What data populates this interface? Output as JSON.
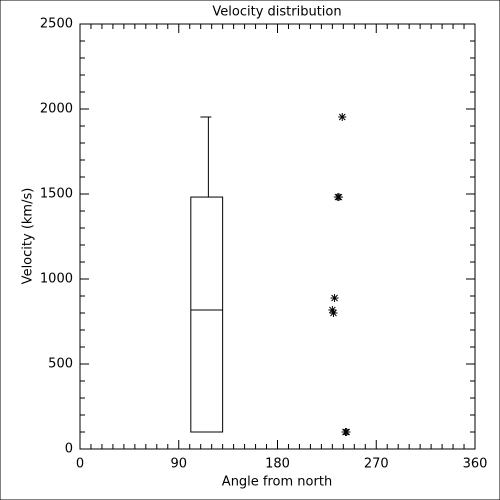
{
  "chart_data": {
    "type": "box",
    "title": "Velocity distribution",
    "xlabel": "Angle from north",
    "ylabel": "Velocity (km/s)",
    "xlim": [
      0,
      360
    ],
    "ylim": [
      0,
      2500
    ],
    "xticks": [
      0,
      90,
      180,
      270,
      360
    ],
    "yticks": [
      0,
      500,
      1000,
      1500,
      2000,
      2500
    ],
    "xminor": 9,
    "yminor": 5,
    "color": "#000000",
    "box": {
      "x": [
        101,
        130
      ],
      "whisker_x": 117,
      "min": 100,
      "q1": 100,
      "median": 818,
      "q3": 1482,
      "max": 1953
    },
    "points": {
      "x": [
        239,
        235,
        236,
        232,
        230,
        231,
        242,
        243
      ],
      "y": [
        1953,
        1482,
        1482,
        888,
        818,
        800,
        100,
        100
      ]
    }
  }
}
